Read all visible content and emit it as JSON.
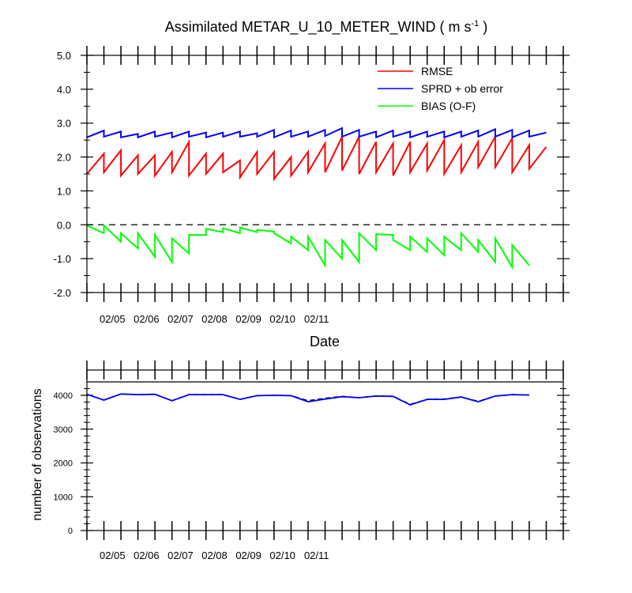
{
  "title": {
    "main": "Assimilated METAR_U_10_METER_WIND ( m s",
    "sup": "-1",
    "close": " )"
  },
  "chart_data": [
    {
      "type": "line",
      "title": "Assimilated METAR_U_10_METER_WIND ( m s-1 )",
      "xlabel": "Date",
      "ylabel": "",
      "x_ticks": [
        "02/05",
        "02/06",
        "02/07",
        "02/08",
        "02/09",
        "02/10",
        "02/11"
      ],
      "y_ticks": [
        "5.0",
        "4.0",
        "3.0",
        "2.0",
        "1.0",
        "0.0",
        "-1.0",
        "-2.0"
      ],
      "ylim": [
        -2.0,
        5.0
      ],
      "xlim": [
        0,
        14
      ],
      "x_unit_note": "x values are 12-hour analysis cycles; 2 cycles per date label",
      "reference_line": 0.0,
      "legend_position": "top-right",
      "series": [
        {
          "name": "RMSE",
          "color": "#ff0000",
          "segments": [
            [
              1.5,
              2.1
            ],
            [
              1.55,
              2.2
            ],
            [
              1.45,
              2.05
            ],
            [
              1.5,
              2.05
            ],
            [
              1.45,
              2.15
            ],
            [
              1.55,
              2.45
            ],
            [
              1.45,
              2.1
            ],
            [
              1.5,
              2.1
            ],
            [
              1.55,
              1.9
            ],
            [
              1.4,
              2.15
            ],
            [
              1.5,
              2.15
            ],
            [
              1.35,
              2.0
            ],
            [
              1.45,
              2.15
            ],
            [
              1.55,
              2.4
            ],
            [
              1.55,
              2.6
            ],
            [
              1.6,
              2.6
            ],
            [
              1.5,
              2.45
            ],
            [
              1.55,
              2.4
            ],
            [
              1.45,
              2.45
            ],
            [
              1.55,
              2.4
            ],
            [
              1.6,
              2.5
            ],
            [
              1.5,
              2.35
            ],
            [
              1.55,
              2.45
            ],
            [
              1.7,
              2.6
            ],
            [
              1.7,
              2.55
            ],
            [
              1.55,
              2.35
            ],
            [
              1.65,
              2.3
            ]
          ]
        },
        {
          "name": "SPRD + ob error",
          "color": "#0000ff",
          "segments": [
            [
              2.58,
              2.78
            ],
            [
              2.6,
              2.75
            ],
            [
              2.58,
              2.68
            ],
            [
              2.58,
              2.75
            ],
            [
              2.6,
              2.72
            ],
            [
              2.58,
              2.75
            ],
            [
              2.6,
              2.72
            ],
            [
              2.58,
              2.72
            ],
            [
              2.6,
              2.75
            ],
            [
              2.6,
              2.7
            ],
            [
              2.6,
              2.8
            ],
            [
              2.58,
              2.78
            ],
            [
              2.6,
              2.75
            ],
            [
              2.6,
              2.8
            ],
            [
              2.62,
              2.85
            ],
            [
              2.6,
              2.8
            ],
            [
              2.6,
              2.75
            ],
            [
              2.58,
              2.78
            ],
            [
              2.6,
              2.75
            ],
            [
              2.58,
              2.75
            ],
            [
              2.6,
              2.75
            ],
            [
              2.58,
              2.75
            ],
            [
              2.6,
              2.78
            ],
            [
              2.6,
              2.82
            ],
            [
              2.6,
              2.8
            ],
            [
              2.58,
              2.78
            ],
            [
              2.6,
              2.72
            ]
          ]
        },
        {
          "name": "BIAS (O-F)",
          "color": "#00ff00",
          "segments": [
            [
              -0.02,
              -0.25
            ],
            [
              -0.02,
              -0.5
            ],
            [
              -0.25,
              -0.7
            ],
            [
              -0.25,
              -0.95
            ],
            [
              -0.3,
              -1.1
            ],
            [
              -0.4,
              -0.85
            ],
            [
              -0.3,
              -0.3
            ],
            [
              -0.12,
              -0.22
            ],
            [
              -0.1,
              -0.25
            ],
            [
              -0.08,
              -0.22
            ],
            [
              -0.15,
              -0.2
            ],
            [
              -0.25,
              -0.55
            ],
            [
              -0.35,
              -0.75
            ],
            [
              -0.35,
              -1.2
            ],
            [
              -0.45,
              -1.0
            ],
            [
              -0.45,
              -1.1
            ],
            [
              -0.25,
              -0.75
            ],
            [
              -0.28,
              -0.3
            ],
            [
              -0.45,
              -0.75
            ],
            [
              -0.35,
              -0.8
            ],
            [
              -0.4,
              -0.9
            ],
            [
              -0.35,
              -0.75
            ],
            [
              -0.25,
              -0.8
            ],
            [
              -0.45,
              -1.1
            ],
            [
              -0.4,
              -1.25
            ],
            [
              -0.6,
              -1.2
            ]
          ]
        }
      ]
    },
    {
      "type": "line",
      "title": "",
      "xlabel": "",
      "ylabel": "number of observations",
      "x_ticks": [
        "02/05",
        "02/06",
        "02/07",
        "02/08",
        "02/09",
        "02/10",
        "02/11"
      ],
      "y_ticks": [
        "4000",
        "3000",
        "2000",
        "1000",
        "0"
      ],
      "ylim": [
        0,
        4400
      ],
      "xlim": [
        0,
        14
      ],
      "series": [
        {
          "name": "",
          "color": "#000000",
          "line_style": "dashed",
          "values": [
            4030,
            3860,
            4040,
            4020,
            4030,
            3840,
            4020,
            4020,
            4020,
            3880,
            3990,
            4000,
            3990,
            3840,
            3910,
            3970,
            3930,
            3980,
            3970,
            3730,
            3880,
            3890,
            3950,
            3820,
            3980,
            4020,
            4010
          ]
        },
        {
          "name": "",
          "color": "#0000ff",
          "line_style": "solid",
          "values": [
            4030,
            3860,
            4040,
            4020,
            4030,
            3840,
            4020,
            4020,
            4020,
            3880,
            3990,
            4000,
            3990,
            3810,
            3890,
            3960,
            3930,
            3980,
            3970,
            3720,
            3880,
            3880,
            3950,
            3810,
            3980,
            4020,
            4010
          ]
        }
      ]
    }
  ]
}
